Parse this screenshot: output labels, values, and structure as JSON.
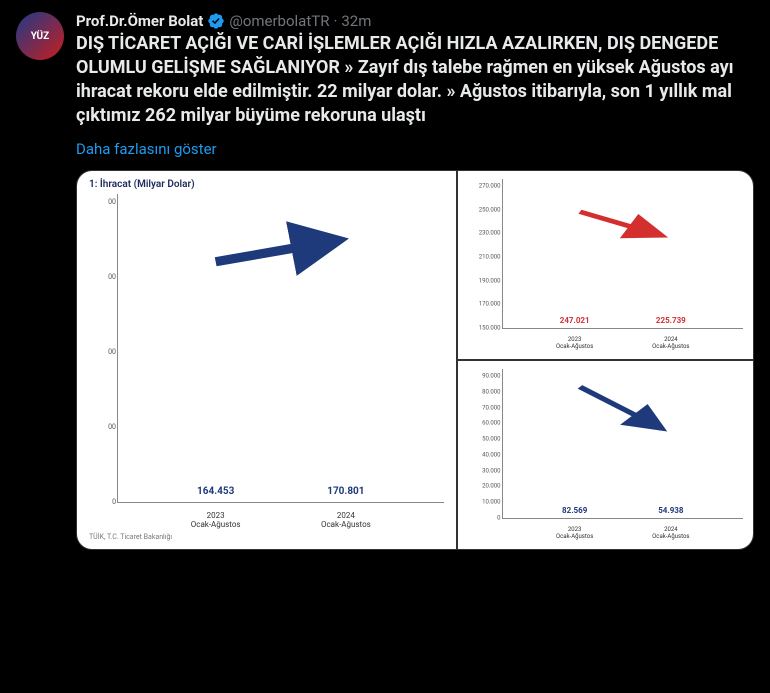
{
  "header": {
    "display_name": "Prof.Dr.Ömer Bolat",
    "handle": "@omerbolatTR",
    "dot": "·",
    "time": "32m",
    "avatar_text": "YÜZ"
  },
  "tweet_text": "DIŞ TİCARET AÇIĞI VE CARİ İŞLEMLER AÇIĞI HIZLA AZALIRKEN, DIŞ DENGEDE OLUMLU GELİŞME SAĞLANIYOR » Zayıf dış talebe rağmen en yüksek Ağustos ayı ihracat rekoru elde edilmiştir. 22 milyar dolar. » Ağustos itibarıyla, son 1 yıllık mal çıktımız 262 milyar büyüme rekoruna ulaştı",
  "show_more": "Daha fazlasını göster",
  "chart1": {
    "title": "1: İhracat (Milyar Dolar)",
    "type": "bar",
    "categories": [
      "2023\nOcak-Ağustos",
      "2024\nOcak-Ağustos"
    ],
    "values": [
      164.453,
      170.801
    ],
    "value_labels": [
      "164.453",
      "170.801"
    ],
    "bar_color": "#1e3a7a",
    "label_color": "#1e3a7a",
    "ylim": [
      0,
      200
    ],
    "ytick_labels": [
      "0",
      "00",
      "00",
      "00",
      "00"
    ],
    "arrow_color": "#1e3a7a",
    "footnote": "TÜİK, T.C. Ticaret Bakanlığı",
    "background": "#ffffff"
  },
  "chart2": {
    "type": "bar",
    "categories": [
      "2023\nOcak-Ağustos",
      "2024\nOcak-Ağustos"
    ],
    "values": [
      247.021,
      225.739
    ],
    "value_labels": [
      "247.021",
      "225.739"
    ],
    "bar_color": "#d32f2f",
    "label_color": "#d32f2f",
    "ylim": [
      150000,
      270000
    ],
    "ytick_labels": [
      "150.000",
      "170.000",
      "190.000",
      "210.000",
      "230.000",
      "250.000",
      "270.000"
    ],
    "arrow_color": "#d32f2f",
    "background": "#ffffff"
  },
  "chart3": {
    "type": "bar",
    "categories": [
      "2023\nOcak-Ağustos",
      "2024\nOcak-Ağustos"
    ],
    "values": [
      82.569,
      54.938
    ],
    "value_labels": [
      "82.569",
      "54.938"
    ],
    "bar_color": "#1e3a7a",
    "label_color": "#1e3a7a",
    "ylim": [
      0,
      90000
    ],
    "ytick_labels": [
      "0",
      "10.000",
      "20.000",
      "30.000",
      "40.000",
      "50.000",
      "60.000",
      "70.000",
      "80.000",
      "90.000"
    ],
    "arrow_color": "#1e3a7a",
    "background": "#ffffff"
  },
  "colors": {
    "verified": "#1d9bf0",
    "link": "#1d9bf0",
    "text": "#e7e9ea",
    "muted": "#71767b",
    "border": "#2f3336",
    "bg": "#000000"
  }
}
